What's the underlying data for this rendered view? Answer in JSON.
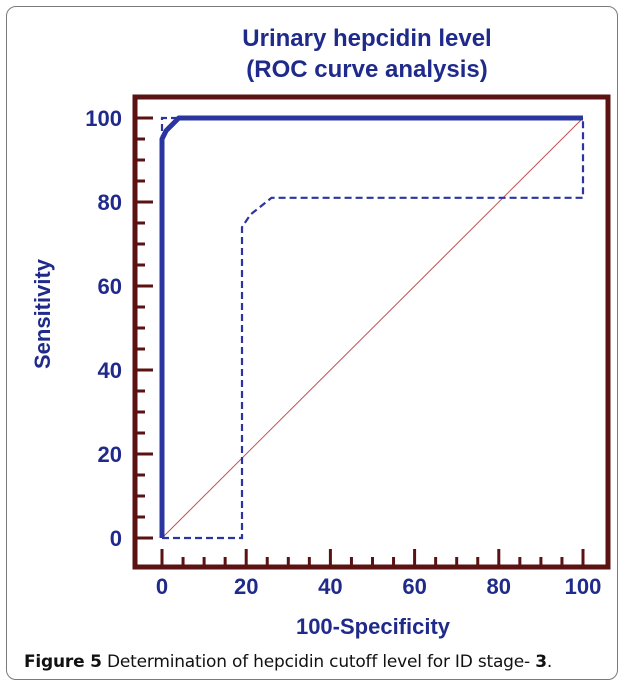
{
  "chart_data": {
    "type": "line",
    "title": [
      "Urinary hepcidin level",
      "(ROC curve analysis)"
    ],
    "xlabel": "100-Specificity",
    "ylabel": "Sensitivity",
    "xlim": [
      0,
      100
    ],
    "ylim": [
      0,
      100
    ],
    "x_ticks": [
      "0",
      "20",
      "40",
      "60",
      "80",
      "100"
    ],
    "y_ticks": [
      "0",
      "20",
      "40",
      "60",
      "80",
      "100"
    ],
    "grid": false,
    "legend": "none",
    "series": [
      {
        "style": "solid",
        "x": [
          0,
          0,
          1,
          4,
          100
        ],
        "y": [
          0,
          95,
          97,
          100,
          100
        ]
      },
      {
        "style": "dashed",
        "x": [
          0,
          19,
          19,
          19,
          21,
          26,
          100,
          100
        ],
        "y": [
          0,
          0,
          74,
          74,
          77,
          81,
          81,
          100
        ]
      },
      {
        "style": "dashed",
        "x": [
          0,
          0,
          4,
          100
        ],
        "y": [
          0,
          100,
          100,
          100
        ]
      },
      {
        "style": "reference",
        "x": [
          0,
          100
        ],
        "y": [
          0,
          100
        ]
      }
    ],
    "colors": {
      "series": "#2b35a0",
      "reference": "#c05050",
      "plot_border": "#5a1212",
      "text": "#1f2a8a"
    }
  },
  "caption": {
    "label": "Figure 5",
    "text": " Determination of hepcidin cutoff level for ID stage- ",
    "number": "3",
    "tail": "."
  }
}
